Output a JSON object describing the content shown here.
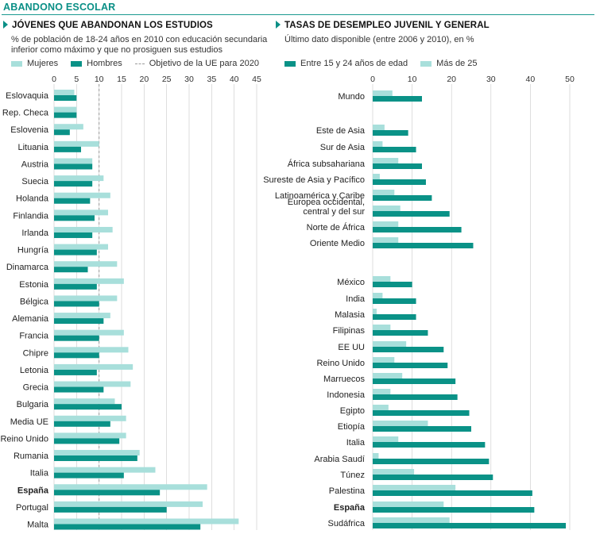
{
  "header": {
    "title": "ABANDONO ESCOLAR"
  },
  "left": {
    "title": "JÓVENES QUE ABANDONAN LOS ESTUDIOS",
    "subtitle": [
      "% de población de 18-24 años en 2010 con educación secundaria",
      "inferior como máximo y que no prosiguen sus estudios"
    ],
    "legend": {
      "women": "Mujeres",
      "men": "Hombres",
      "target": "Objetivo de la UE para 2020"
    }
  },
  "right": {
    "title": "TASAS DE DESEMPLEO JUVENIL Y GENERAL",
    "subtitle": [
      "Último dato disponible (entre 2006 y 2010), en %"
    ],
    "legend": {
      "youth": "Entre 15 y 24 años de edad",
      "over25": "Más de 25"
    }
  },
  "colors": {
    "dark": "#0a9287",
    "light": "#a8dfdb",
    "grid": "#c8c8c8",
    "target": "#9a9a9a",
    "accent": "#0a8f86"
  },
  "chart_data": [
    {
      "type": "bar",
      "orientation": "horizontal",
      "title": "JÓVENES QUE ABANDONAN LOS ESTUDIOS",
      "xlim": [
        0,
        45
      ],
      "ticks": [
        0,
        5,
        10,
        15,
        20,
        25,
        30,
        35,
        40,
        45
      ],
      "target_line": 10,
      "categories": [
        "Eslovaquia",
        "Rep. Checa",
        "Eslovenia",
        "Lituania",
        "Austria",
        "Suecia",
        "Holanda",
        "Finlandia",
        "Irlanda",
        "Hungría",
        "Dinamarca",
        "Estonia",
        "Bélgica",
        "Alemania",
        "Francia",
        "Chipre",
        "Letonia",
        "Grecia",
        "Bulgaria",
        "Media UE",
        "Reino Unido",
        "Rumania",
        "Italia",
        "España",
        "Portugal",
        "Malta"
      ],
      "bold_categories": [
        "España"
      ],
      "series": [
        {
          "name": "Mujeres",
          "values": [
            4.5,
            5.0,
            6.5,
            10.0,
            8.5,
            11.0,
            12.5,
            12.0,
            13.0,
            12.0,
            14.0,
            15.5,
            14.0,
            12.5,
            15.5,
            16.5,
            17.5,
            17.0,
            13.5,
            16.0,
            16.0,
            19.0,
            22.5,
            34.0,
            33.0,
            41.0
          ]
        },
        {
          "name": "Hombres",
          "values": [
            5.0,
            5.0,
            3.5,
            6.0,
            8.5,
            8.5,
            8.0,
            9.0,
            8.5,
            9.5,
            7.5,
            9.5,
            10.0,
            11.0,
            10.0,
            10.0,
            9.5,
            11.0,
            15.0,
            12.5,
            14.5,
            18.5,
            15.5,
            23.5,
            25.0,
            32.5
          ]
        }
      ]
    },
    {
      "type": "bar",
      "orientation": "horizontal",
      "title": "TASAS DE DESEMPLEO JUVENIL Y GENERAL",
      "xlim": [
        0,
        50
      ],
      "ticks": [
        0,
        10,
        20,
        30,
        40,
        50
      ],
      "categories": [
        "Mundo",
        "Este de Asia",
        "Sur de Asia",
        "África subsahariana",
        "Sureste de Asia y Pacífico",
        "Latinoamérica y Caribe",
        "Europea occidental, central y del sur",
        "Norte de África",
        "Oriente Medio",
        "México",
        "India",
        "Malasia",
        "Filipinas",
        "EE UU",
        "Reino Unido",
        "Marruecos",
        "Indonesia",
        "Egipto",
        "Etiopía",
        "Italia",
        "Arabia Saudí",
        "Túnez",
        "Palestina",
        "España",
        "Sudáfrica"
      ],
      "bold_categories": [
        "España"
      ],
      "series": [
        {
          "name": "Más de 25",
          "values": [
            5.0,
            3.0,
            2.5,
            6.5,
            1.8,
            5.5,
            7.0,
            6.5,
            6.5,
            4.5,
            2.5,
            1.0,
            4.5,
            8.5,
            5.5,
            7.5,
            4.5,
            4.0,
            14.0,
            6.5,
            1.5,
            10.5,
            21.0,
            18.0,
            19.5
          ]
        },
        {
          "name": "Entre 15 y 24 años de edad",
          "values": [
            12.5,
            9.0,
            11.0,
            12.5,
            13.5,
            15.0,
            19.5,
            22.5,
            25.5,
            10.0,
            11.0,
            11.0,
            14.0,
            18.0,
            19.0,
            21.0,
            21.5,
            24.5,
            25.0,
            28.5,
            29.5,
            30.5,
            40.5,
            41.0,
            49.0
          ]
        }
      ]
    }
  ]
}
